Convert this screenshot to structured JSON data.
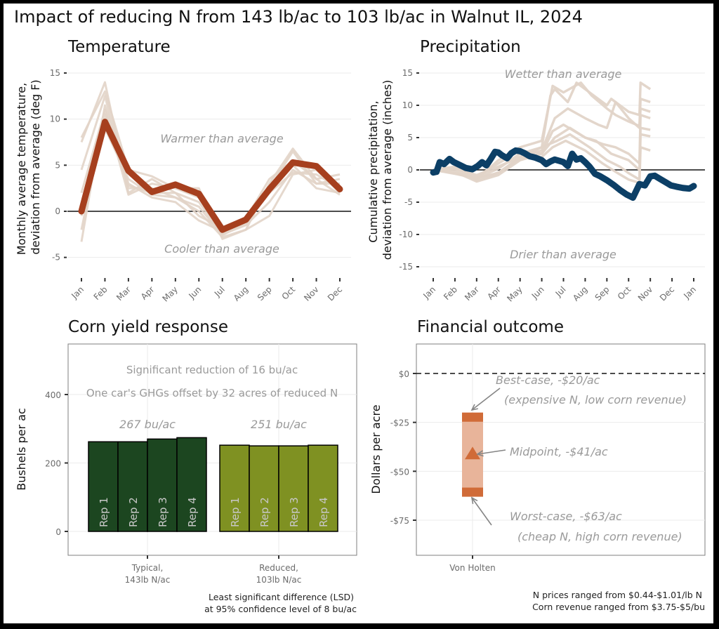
{
  "title": "Impact of reducing N from 143 lb/ac to 103 lb/ac in Walnut IL, 2024",
  "colors": {
    "temp_current": "#a63f1e",
    "historic": "#e2d4c8",
    "precip_current": "#0c3f66",
    "typical_bar": "#1c4620",
    "reduced_bar": "#7f9122",
    "fin_range": "#e8b49a",
    "fin_end": "#d06b38",
    "annotation": "#9a9a9a"
  },
  "chart_data": [
    {
      "id": "temperature",
      "type": "line",
      "title": "Temperature",
      "xlabel": "",
      "ylabel": "Monthly average temperature,\ndeviation from average (deg F)",
      "ylabel_lines": [
        "Monthly average temperature,",
        "deviation from average (deg F)"
      ],
      "x": [
        "Jan",
        "Feb",
        "Mar",
        "Apr",
        "May",
        "Jun",
        "Jul",
        "Aug",
        "Sep",
        "Oct",
        "Nov",
        "Dec"
      ],
      "ylim": [
        -7,
        15.5
      ],
      "yticks": [
        15,
        10,
        5,
        0,
        -5
      ],
      "ytick_labels": [
        "15",
        "10",
        "5",
        "0",
        "-5"
      ],
      "grid": true,
      "zero_line": true,
      "annotations": [
        "Warmer than average",
        "Cooler than average"
      ],
      "series": [
        {
          "name": "2024",
          "role": "current",
          "values": [
            0,
            9.7,
            4.4,
            2.1,
            2.9,
            1.9,
            -2.0,
            -0.9,
            2.4,
            5.3,
            4.9,
            2.4
          ]
        },
        {
          "name": "historic-1",
          "role": "historic",
          "values": [
            7.5,
            14.0,
            2.0,
            3.5,
            2.0,
            1.0,
            -2.5,
            -1.5,
            2.5,
            6.5,
            3.0,
            3.5
          ]
        },
        {
          "name": "historic-2",
          "role": "historic",
          "values": [
            8.0,
            13.0,
            4.5,
            3.8,
            2.5,
            2.5,
            -3.0,
            -2.0,
            3.0,
            6.8,
            3.5,
            4.0
          ]
        },
        {
          "name": "historic-3",
          "role": "historic",
          "values": [
            4.5,
            12.5,
            2.5,
            2.5,
            1.5,
            0.0,
            -2.8,
            -2.0,
            -0.5,
            4.0,
            4.5,
            2.0
          ]
        },
        {
          "name": "historic-4",
          "role": "historic",
          "values": [
            -3.3,
            11.5,
            3.0,
            1.5,
            1.0,
            -1.0,
            -2.2,
            -1.0,
            2.0,
            5.0,
            2.5,
            2.0
          ]
        },
        {
          "name": "historic-5",
          "role": "historic",
          "values": [
            -2.0,
            10.5,
            2.8,
            2.0,
            2.0,
            -0.5,
            -1.8,
            -1.5,
            1.0,
            4.5,
            3.0,
            3.0
          ]
        },
        {
          "name": "historic-6",
          "role": "historic",
          "values": [
            -0.5,
            9.0,
            3.5,
            1.8,
            1.5,
            0.5,
            -2.6,
            -1.2,
            2.0,
            4.2,
            4.0,
            2.5
          ]
        },
        {
          "name": "historic-7",
          "role": "historic",
          "values": [
            2.0,
            11.0,
            1.8,
            3.0,
            2.5,
            1.5,
            -2.3,
            -0.8,
            3.5,
            5.5,
            3.5,
            1.8
          ]
        }
      ]
    },
    {
      "id": "precipitation",
      "type": "line",
      "title": "Precipitation",
      "xlabel": "",
      "ylabel": "Cumulative precipitation,\ndeviation from average (inches)",
      "ylabel_lines": [
        "Cumulative precipitation,",
        "deviation from average (inches)"
      ],
      "x": [
        "Jan",
        "Feb",
        "Mar",
        "Apr",
        "May",
        "Jun",
        "Jul",
        "Aug",
        "Sep",
        "Oct",
        "Nov",
        "Dec",
        "Jan"
      ],
      "ylim": [
        -16,
        16
      ],
      "yticks": [
        15,
        10,
        5,
        0,
        -5,
        -10,
        -15
      ],
      "ytick_labels": [
        "15",
        "10",
        "5",
        "0",
        "-5",
        "-10",
        "-15"
      ],
      "grid": true,
      "zero_line": true,
      "annotations": [
        "Wetter than average",
        "Drier than average"
      ],
      "series": [
        {
          "name": "2024",
          "role": "current",
          "x_month": [
            0,
            0.15,
            0.3,
            0.5,
            0.75,
            0.95,
            1.2,
            1.5,
            1.8,
            2.05,
            2.25,
            2.45,
            2.65,
            2.85,
            3.0,
            3.15,
            3.4,
            3.6,
            3.8,
            4.0,
            4.2,
            4.45,
            4.7,
            5.0,
            5.2,
            5.4,
            5.6,
            5.8,
            6.0,
            6.2,
            6.4,
            6.6,
            6.8,
            7.0,
            7.2,
            7.45,
            7.7,
            8.0,
            8.3,
            8.6,
            8.9,
            9.2,
            9.5,
            9.75,
            10.0,
            10.2,
            10.4,
            10.55,
            10.75,
            10.95,
            11.2,
            11.5,
            11.8,
            12.0
          ],
          "values": [
            -0.4,
            -0.3,
            1.2,
            0.9,
            1.7,
            1.2,
            0.8,
            0.3,
            0.1,
            0.6,
            1.2,
            0.7,
            1.7,
            2.8,
            2.7,
            2.3,
            1.8,
            2.6,
            3.0,
            2.9,
            2.6,
            2.1,
            1.9,
            1.5,
            0.9,
            1.3,
            1.6,
            1.4,
            1.2,
            0.6,
            2.5,
            1.6,
            1.8,
            1.2,
            0.5,
            -0.6,
            -1.0,
            -1.6,
            -2.3,
            -3.1,
            -3.8,
            -4.3,
            -2.2,
            -2.4,
            -1.0,
            -0.9,
            -1.3,
            -1.6,
            -2.0,
            -2.4,
            -2.6,
            -2.8,
            -2.9,
            -2.5
          ]
        },
        {
          "name": "historic-1",
          "role": "historic",
          "x_month": [
            0,
            1,
            2,
            3,
            4,
            5,
            5.4,
            5.6,
            6.2,
            6.6,
            7.2,
            8.0,
            8.2,
            9.0,
            9.5,
            9.55,
            10.0
          ],
          "values": [
            0,
            -0.5,
            -1.2,
            -0.5,
            2,
            3.5,
            11.5,
            12.5,
            10.5,
            13.5,
            12,
            10,
            11,
            9,
            8.5,
            13.5,
            12.5
          ]
        },
        {
          "name": "historic-2",
          "role": "historic",
          "x_month": [
            0,
            1,
            2,
            3,
            4,
            5,
            5.5,
            6.0,
            6.8,
            7.3,
            8.0,
            8.4,
            9.0,
            9.5,
            9.55,
            10.0
          ],
          "values": [
            0,
            0.5,
            -1.5,
            1.5,
            3.5,
            4.5,
            13,
            12,
            13.5,
            11.5,
            9.5,
            8.5,
            7.5,
            6.8,
            11,
            10.5
          ]
        },
        {
          "name": "historic-3",
          "role": "historic",
          "x_month": [
            0,
            1,
            2,
            3,
            4,
            5,
            5.6,
            6.2,
            7.0,
            7.6,
            8.0,
            8.4,
            9.0,
            9.5,
            9.55,
            10.0
          ],
          "values": [
            0,
            0.2,
            -0.8,
            0.5,
            2,
            3,
            8,
            9.5,
            8,
            7,
            6.5,
            10.5,
            8,
            6.5,
            9.5,
            9
          ]
        },
        {
          "name": "historic-4",
          "role": "historic",
          "x_month": [
            0,
            1,
            2,
            3,
            4,
            5,
            5.5,
            6.0,
            7.0,
            7.8,
            8.4,
            9.0,
            9.5,
            9.55,
            10.0
          ],
          "values": [
            0,
            -0.3,
            -1.8,
            -0.8,
            1.5,
            2.5,
            6,
            7,
            5,
            4,
            3.5,
            2.5,
            1,
            8.5,
            8
          ]
        },
        {
          "name": "historic-5",
          "role": "historic",
          "x_month": [
            0,
            1,
            2,
            3,
            4,
            5,
            5.6,
            6.3,
            7.0,
            7.5,
            8.2,
            9.0,
            9.5,
            9.55,
            10.0
          ],
          "values": [
            0,
            0.3,
            -1.0,
            1.0,
            3,
            2.5,
            5,
            6.5,
            5,
            4.5,
            2.5,
            1.5,
            0,
            6.5,
            6.2
          ]
        },
        {
          "name": "historic-6",
          "role": "historic",
          "x_month": [
            0,
            1,
            2,
            3,
            4,
            5,
            5.7,
            6.3,
            7.2,
            8.0,
            8.6,
            9.0,
            9.5,
            9.55,
            10.0
          ],
          "values": [
            0,
            -0.6,
            -1.3,
            0.2,
            2.5,
            3.5,
            4.5,
            5.5,
            3.5,
            1.5,
            0.5,
            -0.5,
            -1.5,
            5.5,
            5.2
          ]
        },
        {
          "name": "historic-7",
          "role": "historic",
          "x_month": [
            0,
            1,
            2,
            3,
            4,
            5,
            5.5,
            6.1,
            7.0,
            7.8,
            8.5,
            9.0,
            9.5,
            9.55,
            10.0
          ],
          "values": [
            0,
            0.1,
            -1.6,
            -0.4,
            1.8,
            2.0,
            3.5,
            4.5,
            3.0,
            1.0,
            -0.5,
            -1.5,
            -2.0,
            3.5,
            3.0
          ]
        }
      ]
    },
    {
      "id": "corn-yield",
      "type": "bar",
      "title": "Corn yield response",
      "xlabel": "",
      "ylabel": "Bushels per ac",
      "ylim": [
        -65,
        550
      ],
      "yticks": [
        0,
        200,
        400
      ],
      "ytick_labels": [
        "0",
        "200",
        "400"
      ],
      "grid": true,
      "categories": [
        "Typical,\n143lb N/ac",
        "Reduced,\n103lb N/ac"
      ],
      "category_lines": [
        [
          "Typical,",
          "143lb N/ac"
        ],
        [
          "Reduced,",
          "103lb N/ac"
        ]
      ],
      "bar_labels": [
        "Rep 1",
        "Rep 2",
        "Rep 3",
        "Rep 4"
      ],
      "series": [
        {
          "name": "Typical, 143lb N/ac",
          "mean_label": "267 bu/ac",
          "values": [
            262,
            262,
            270,
            274
          ]
        },
        {
          "name": "Reduced, 103lb N/ac",
          "mean_label": "251 bu/ac",
          "values": [
            252,
            250,
            250,
            252
          ]
        }
      ],
      "annotations": [
        "Significant reduction of 16 bu/ac",
        "One car's GHGs offset by 32 acres of reduced N"
      ],
      "caption_lines": [
        "Least significant difference (LSD)",
        "at 95% confidence level of 8 bu/ac"
      ]
    },
    {
      "id": "financial-outcome",
      "type": "bar",
      "title": "Financial outcome",
      "xlabel": "",
      "ylabel": "Dollars per acre",
      "ylim": [
        -90,
        12
      ],
      "yticks": [
        0,
        -25,
        -50,
        -75
      ],
      "ytick_labels": [
        "$0",
        "-$25",
        "-$50",
        "-$75"
      ],
      "grid": true,
      "categories": [
        "Von Holten"
      ],
      "range": {
        "best": -20,
        "midpoint": -41,
        "worst": -63
      },
      "reference_line": 0,
      "annotations": {
        "best": [
          "Best-case, -$20/ac",
          "(expensive N, low corn revenue)"
        ],
        "mid": [
          "Midpoint, -$41/ac"
        ],
        "worst": [
          "Worst-case, -$63/ac",
          "(cheap N,  high corn revenue)"
        ]
      },
      "caption_lines": [
        "N prices ranged from $0.44-$1.01/lb N",
        "Corn revenue ranged from $3.75-$5/bu"
      ]
    }
  ]
}
